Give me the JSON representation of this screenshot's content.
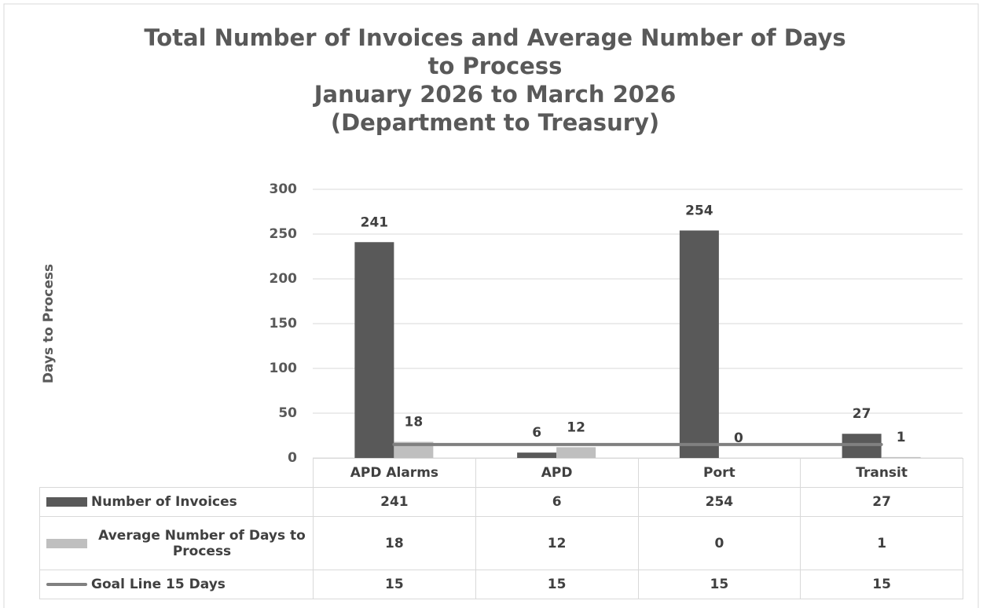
{
  "chart_data": {
    "type": "bar",
    "title": "Total Number of Invoices and Average Number of Days to Process",
    "subtitle": [
      "January 2026 to March 2026",
      "(Department to Treasury)"
    ],
    "y_axis_label": "Days to Process",
    "categories": [
      "APD Alarms",
      "APD",
      "Port",
      "Transit"
    ],
    "series": [
      {
        "name": "Number of Invoices",
        "color": "#595959",
        "type": "bar",
        "values": [
          241,
          6,
          254,
          27
        ]
      },
      {
        "name": "Average Number of Days to Process",
        "color": "#bfbfbf",
        "type": "bar",
        "values": [
          18,
          12,
          0,
          1
        ]
      },
      {
        "name": "Goal Line 15 Days",
        "color": "#808080",
        "type": "line",
        "values": [
          15,
          15,
          15,
          15
        ]
      }
    ],
    "ylim": [
      0,
      300
    ],
    "yticks": [
      0,
      50,
      100,
      150,
      200,
      250,
      300
    ],
    "grid": true
  }
}
